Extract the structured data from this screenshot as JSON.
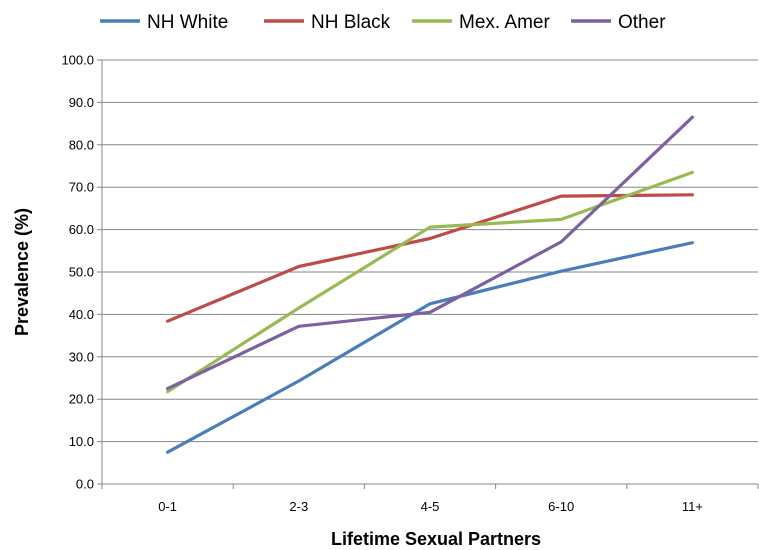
{
  "chart_data": {
    "type": "line",
    "title": "",
    "xlabel": "Lifetime Sexual Partners",
    "ylabel": "Prevalence (%)",
    "categories": [
      "0-1",
      "2-3",
      "4-5",
      "6-10",
      "11+"
    ],
    "ylim": [
      0,
      100
    ],
    "ytick_step": 10,
    "ytick_labels": [
      "0.0",
      "10.0",
      "20.0",
      "30.0",
      "40.0",
      "50.0",
      "60.0",
      "70.0",
      "80.0",
      "90.0",
      "100.0"
    ],
    "grid": "horizontal",
    "legend_position": "top",
    "series": [
      {
        "name": "NH White",
        "color": "#4a7ebb",
        "values": [
          7.5,
          24.3,
          42.5,
          50.2,
          56.9
        ]
      },
      {
        "name": "NH Black",
        "color": "#be4b48",
        "values": [
          38.4,
          51.3,
          57.9,
          67.9,
          68.2
        ]
      },
      {
        "name": "Mex. Amer",
        "color": "#98b954",
        "values": [
          21.8,
          41.5,
          60.6,
          62.4,
          73.5
        ]
      },
      {
        "name": "Other",
        "color": "#7d60a0",
        "values": [
          22.5,
          37.2,
          40.5,
          57.1,
          86.5
        ]
      }
    ]
  }
}
